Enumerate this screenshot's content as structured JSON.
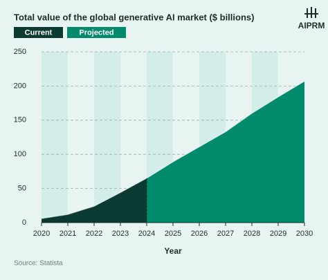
{
  "logo": "AIPRM",
  "chart_data": {
    "type": "area",
    "title": "Total value of the global generative AI market ($ billions)",
    "x_label": "Year",
    "source": "Source: Statista",
    "x": [
      2020,
      2021,
      2022,
      2023,
      2024,
      2025,
      2026,
      2027,
      2028,
      2029,
      2030
    ],
    "series": [
      {
        "name": "Current",
        "color": "#0b3a33",
        "values": [
          6,
          12,
          24,
          44,
          65,
          null,
          null,
          null,
          null,
          null,
          null
        ]
      },
      {
        "name": "Projected",
        "color": "#028a6c",
        "values": [
          null,
          null,
          null,
          null,
          65,
          89,
          111,
          133,
          160,
          184,
          207
        ]
      }
    ],
    "xlim": [
      2020,
      2030
    ],
    "xticks": [
      2020,
      2021,
      2022,
      2023,
      2024,
      2025,
      2026,
      2027,
      2028,
      2029,
      2030
    ],
    "ylim": [
      0,
      250
    ],
    "yticks": [
      0,
      50,
      100,
      150,
      200,
      250
    ],
    "grid": true
  }
}
